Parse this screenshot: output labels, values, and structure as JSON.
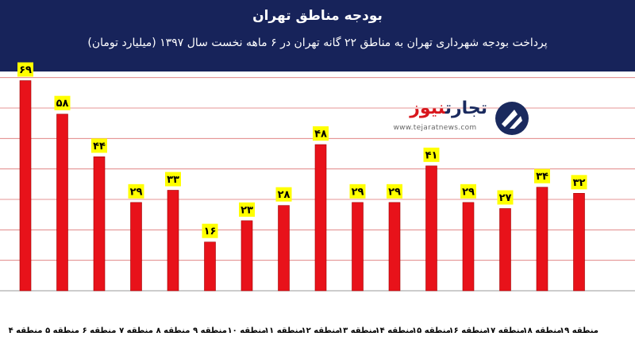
{
  "header": {
    "title": "بودجه مناطق تهران",
    "subtitle": "پرداخت بودجه شهرداری تهران به مناطق ۲۲ گانه تهران در ۶ ماهه نخست سال ۱۳۹۷ (میلیارد تومان)"
  },
  "watermark": {
    "brand_part1": "تجارت",
    "brand_part2": "نیوز",
    "url": "www.tejaratnews.com"
  },
  "colors": {
    "header_bg": "#17235a",
    "bar": "#e8121a",
    "label_bg": "#ffff00",
    "grid": "#c00000"
  },
  "chart_data": {
    "type": "bar",
    "title": "بودجه مناطق تهران",
    "subtitle": "پرداخت بودجه شهرداری تهران به مناطق ۲۲ گانه تهران در ۶ ماهه نخست سال ۱۳۹۷ (میلیارد تومان)",
    "categories": [
      "منطقه ۴",
      "منطقه ۵",
      "منطقه ۶",
      "منطقه ۷",
      "منطقه ۸",
      "منطقه ۹",
      "منطقه ۱۰",
      "منطقه ۱۱",
      "منطقه ۱۲",
      "منطقه ۱۳",
      "منطقه ۱۴",
      "منطقه ۱۵",
      "منطقه ۱۶",
      "منطقه ۱۷",
      "منطقه ۱۸",
      "منطقه ۱۹"
    ],
    "values": [
      69,
      58,
      44,
      29,
      33,
      16,
      23,
      28,
      48,
      29,
      29,
      41,
      29,
      27,
      34,
      32
    ],
    "value_labels": [
      "۶۹",
      "۵۸",
      "۴۴",
      "۲۹",
      "۳۳",
      "۱۶",
      "۲۳",
      "۲۸",
      "۴۸",
      "۲۹",
      "۲۹",
      "۴۱",
      "۲۹",
      "۲۷",
      "۳۴",
      "۳۲"
    ],
    "ylim": [
      0,
      72
    ],
    "grid": true,
    "legend": "none"
  }
}
